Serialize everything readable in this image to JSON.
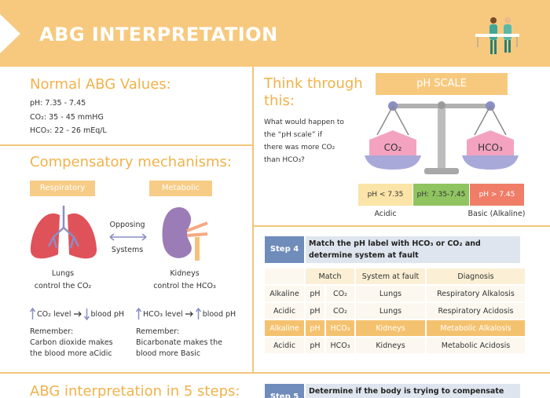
{
  "header": {
    "title": "ABG INTERPRETATION"
  },
  "normal": {
    "title": "Normal ABG Values:",
    "lines": [
      "pH: 7.35 - 7.45",
      "CO₂: 35 - 45 mmHG",
      "HCO₃: 22 - 26 mEq/L"
    ]
  },
  "compensatory": {
    "title": "Compensatory mechanisms:",
    "left_tag": "Respiratory",
    "right_tag": "Metabolic",
    "middle": [
      "Opposing",
      "Systems"
    ],
    "left_caption": [
      "Lungs",
      "control the CO₂"
    ],
    "right_caption": [
      "Kidneys",
      "control the HCO₃"
    ],
    "left_rule": [
      "CO₂ level",
      "blood pH"
    ],
    "right_rule": [
      "HCO₃ level",
      "blood pH"
    ],
    "left_remember": [
      "Remember:",
      "Carbon dioxide makes",
      "the blood more aCidic"
    ],
    "right_remember": [
      "Remember:",
      "Bicarbonate makes the",
      "blood more Basic"
    ]
  },
  "think": {
    "title": [
      "Think through",
      "this:"
    ],
    "question": [
      "What would happen to",
      "the “pH scale” if",
      "there was more CO₂",
      "than HCO₃?"
    ],
    "scale_title": "pH SCALE",
    "left_pan": "CO₂",
    "right_pan": "HCO₃",
    "ranges": [
      "pH < 7.35",
      "pH: 7.35-7.45",
      "pH > 7.45"
    ],
    "range_labels": [
      "Acidic",
      "Basic (Alkaline)"
    ]
  },
  "step4": {
    "label": "Step 4",
    "text": "Match the pH label with HCO₃ or CO₂ and determine system at fault",
    "table": {
      "header": [
        "Match",
        "System at fault",
        "Diagnosis"
      ],
      "rows": [
        [
          "Alkaline",
          "pH",
          "CO₂",
          "Lungs",
          "Respiratory Alkalosis"
        ],
        [
          "Acidic",
          "pH",
          "CO₂",
          "Lungs",
          "Respiratory Acidosis"
        ],
        [
          "Alkaline",
          "pH",
          "HCO₃",
          "Kidneys",
          "Metabolic Alkalosis"
        ],
        [
          "Acidic",
          "pH",
          "HCO₃",
          "Kidneys",
          "Metabolic Acidosis"
        ]
      ]
    }
  },
  "bottom": {
    "title": "ABG interpretation in 5 steps:",
    "step5_label": "Step 5",
    "step5_text": "Determine if the body is trying to compensate"
  }
}
